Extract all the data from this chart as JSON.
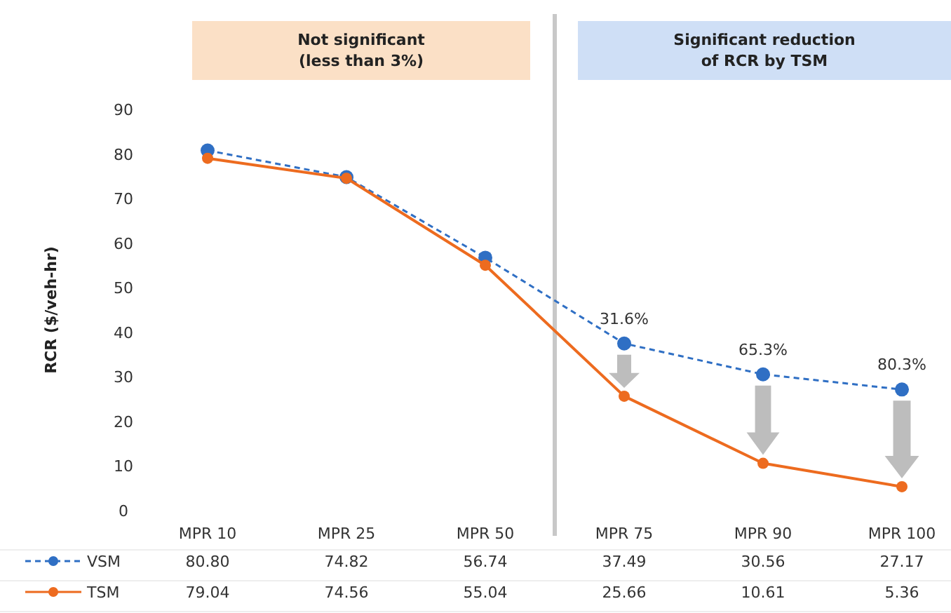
{
  "chart_data": {
    "type": "line",
    "ylabel": "RCR ($/veh-hr)",
    "categories": [
      "MPR 10",
      "MPR 25",
      "MPR 50",
      "MPR 75",
      "MPR 90",
      "MPR 100"
    ],
    "series": [
      {
        "name": "VSM",
        "color": "#2f6fc4",
        "values": [
          80.8,
          74.82,
          56.74,
          37.49,
          30.56,
          27.17
        ],
        "value_labels": [
          "80.80",
          "74.82",
          "56.74",
          "37.49",
          "30.56",
          "27.17"
        ],
        "line_style": "dashed"
      },
      {
        "name": "TSM",
        "color": "#ed6b1f",
        "values": [
          79.04,
          74.56,
          55.04,
          25.66,
          10.61,
          5.36
        ],
        "value_labels": [
          "79.04",
          "74.56",
          "55.04",
          "25.66",
          "10.61",
          "5.36"
        ],
        "line_style": "solid"
      }
    ],
    "ylim": [
      0,
      90
    ],
    "yticks": [
      0,
      10,
      20,
      30,
      40,
      50,
      60,
      70,
      80,
      90
    ],
    "marker": "circle",
    "legend": "bottom left",
    "grid": false,
    "annotations": [
      "Not significant\n(less than 3%)",
      "Significant reduction\nof RCR by TSM",
      {
        "text": "31.6%",
        "x": "MPR 75",
        "y": 37.49
      },
      {
        "text": "65.3%",
        "x": "MPR 90",
        "y": 30.56
      },
      {
        "text": "80.3%",
        "x": "MPR 100",
        "y": 27.17
      }
    ]
  }
}
